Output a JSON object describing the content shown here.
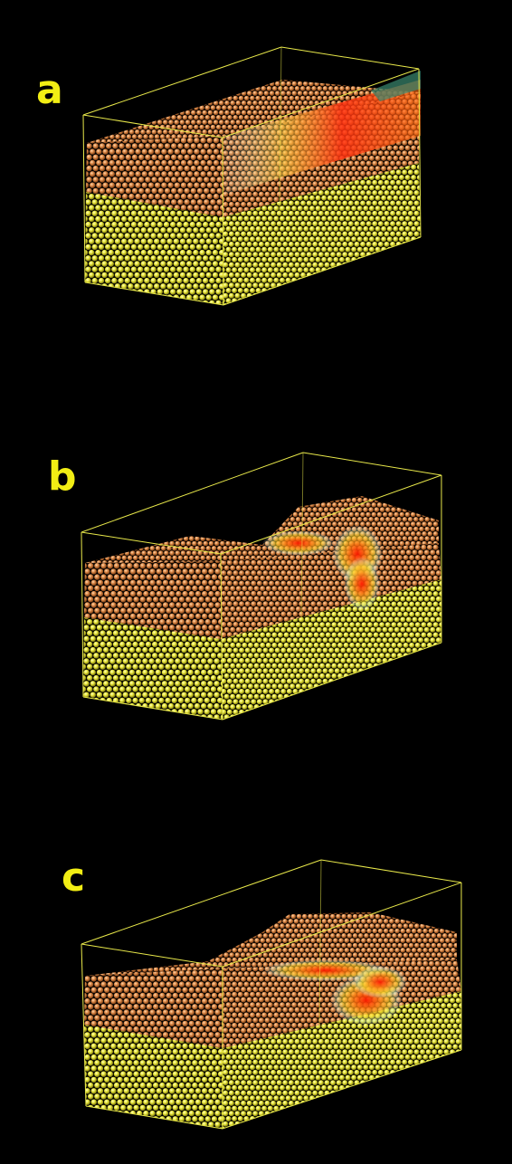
{
  "panels": [
    {
      "label": "a"
    },
    {
      "label": "b"
    },
    {
      "label": "c"
    }
  ],
  "colors": {
    "background": "#000000",
    "label": "#f2ee14",
    "box_edge": "#e8e84a",
    "upper_layer_atoms": "#d9894a",
    "lower_layer_atoms": "#eaea3c",
    "energy_hotspot": "#ff2200"
  }
}
